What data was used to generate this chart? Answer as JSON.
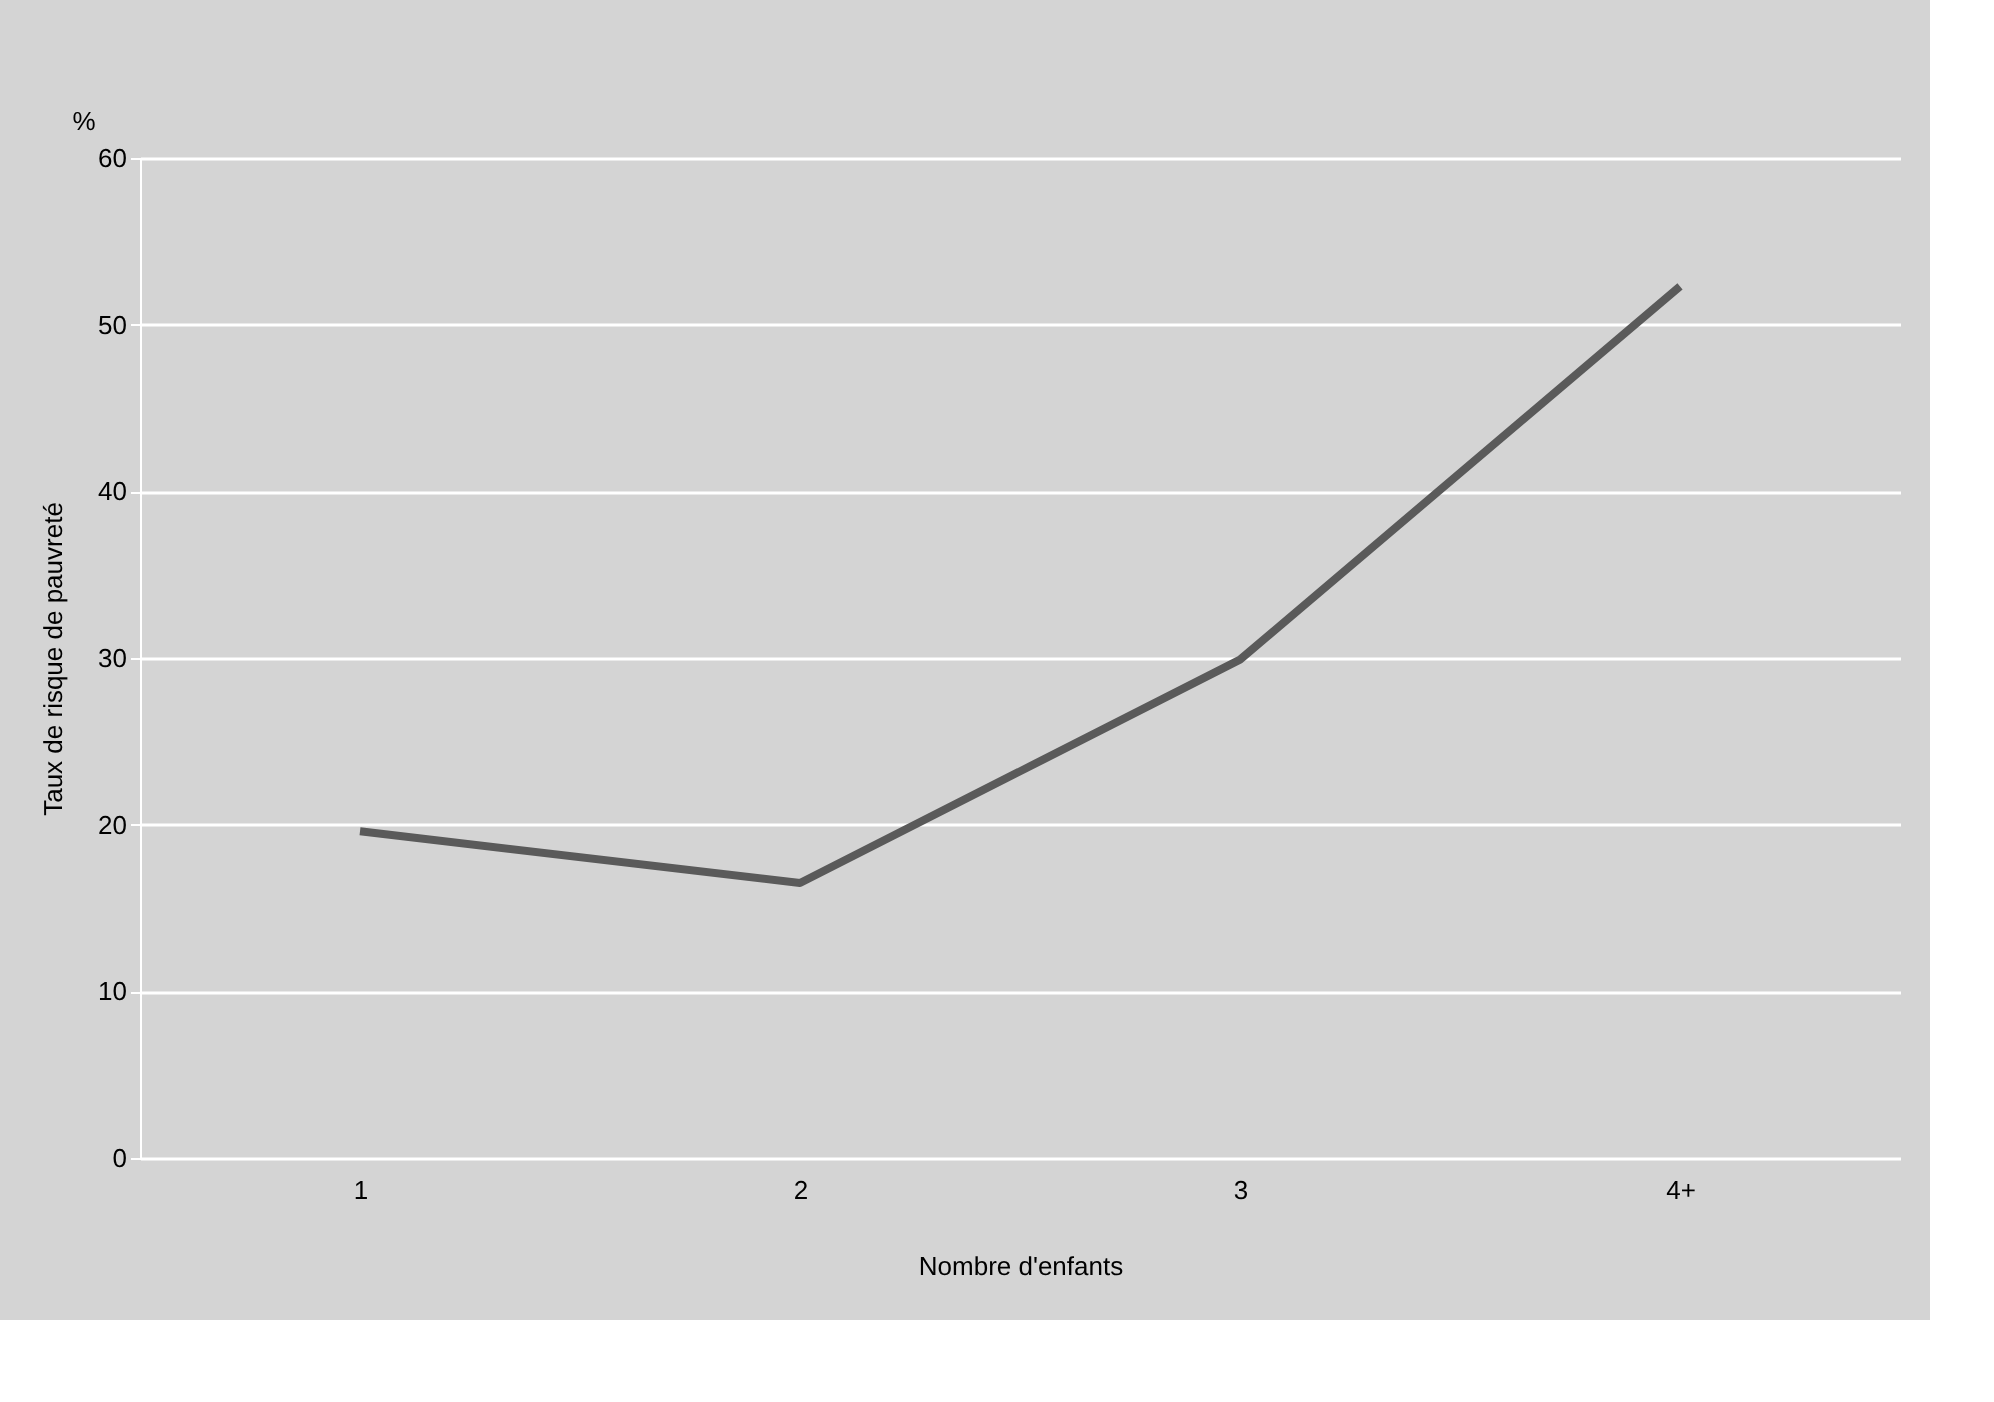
{
  "chart_data": {
    "type": "line",
    "xlabel": "Nombre d'enfants",
    "ylabel": "Taux de risque de pauvreté",
    "annotations": [
      "%"
    ],
    "categories": [
      "1",
      "2",
      "3",
      "4+"
    ],
    "series": [
      {
        "color": "#5a5a5a",
        "values": [
          19.6,
          16.5,
          29.9,
          52.3
        ]
      }
    ],
    "ylim": [
      0,
      60
    ],
    "yticks": [
      0,
      10,
      20,
      30,
      40,
      50,
      60
    ],
    "grid": "y",
    "legend": false,
    "marker": "none",
    "line_style": "solid"
  }
}
